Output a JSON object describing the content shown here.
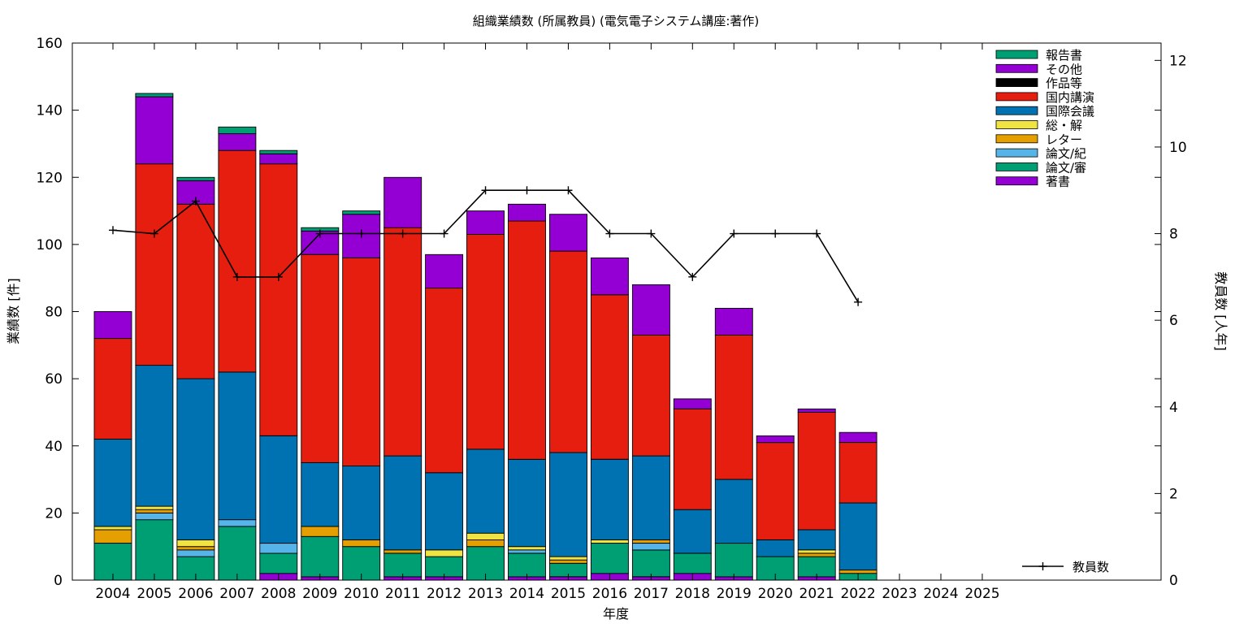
{
  "chart_data": {
    "type": "bar",
    "stacked": true,
    "title": "組織業績数 (所属教員) (電気電子システム講座:著作)",
    "xlabel": "年度",
    "ylabel": "業績数 [件]",
    "y2label": "教員数 [人年]",
    "ylim": [
      0,
      160
    ],
    "y2lim": [
      0,
      12.4
    ],
    "yticks": [
      0,
      20,
      40,
      60,
      80,
      100,
      120,
      140,
      160
    ],
    "y2ticks": [
      0,
      2,
      4,
      6,
      8,
      10,
      12
    ],
    "grid": false,
    "legend_position": "top-right",
    "categories": [
      "2004",
      "2005",
      "2006",
      "2007",
      "2008",
      "2009",
      "2010",
      "2011",
      "2012",
      "2013",
      "2014",
      "2015",
      "2016",
      "2017",
      "2018",
      "2019",
      "2020",
      "2021",
      "2022",
      "2023",
      "2024",
      "2025"
    ],
    "series": [
      {
        "name": "著書",
        "color": "#9400d3",
        "values": [
          0,
          0,
          0,
          0,
          2,
          1,
          0,
          1,
          1,
          0,
          1,
          1,
          2,
          1,
          2,
          1,
          0,
          1,
          0,
          0,
          0,
          0
        ]
      },
      {
        "name": "論文/審",
        "color": "#009e73",
        "values": [
          11,
          18,
          7,
          16,
          6,
          12,
          10,
          7,
          6,
          10,
          7,
          4,
          9,
          8,
          6,
          10,
          7,
          6,
          2,
          0,
          0,
          0
        ]
      },
      {
        "name": "論文/紀",
        "color": "#56b4e9",
        "values": [
          0,
          2,
          2,
          2,
          3,
          0,
          0,
          0,
          0,
          0,
          1,
          0,
          0,
          2,
          0,
          0,
          0,
          0,
          0,
          0,
          0,
          0
        ]
      },
      {
        "name": "レター",
        "color": "#e69f00",
        "values": [
          4,
          1,
          1,
          0,
          0,
          3,
          2,
          1,
          0,
          2,
          0,
          1,
          0,
          1,
          0,
          0,
          0,
          1,
          1,
          0,
          0,
          0
        ]
      },
      {
        "name": "総・解",
        "color": "#f0e442",
        "values": [
          1,
          1,
          2,
          0,
          0,
          0,
          0,
          0,
          2,
          2,
          1,
          1,
          1,
          0,
          0,
          0,
          0,
          1,
          0,
          0,
          0,
          0
        ]
      },
      {
        "name": "国際会議",
        "color": "#0072b2",
        "values": [
          26,
          42,
          48,
          44,
          32,
          19,
          22,
          28,
          23,
          25,
          26,
          31,
          24,
          25,
          13,
          19,
          5,
          6,
          20,
          0,
          0,
          0
        ]
      },
      {
        "name": "国内講演",
        "color": "#e51e10",
        "values": [
          30,
          60,
          52,
          66,
          81,
          62,
          62,
          68,
          55,
          64,
          71,
          60,
          49,
          36,
          30,
          43,
          29,
          35,
          18,
          0,
          0,
          0
        ]
      },
      {
        "name": "作品等",
        "color": "#000000",
        "values": [
          0,
          0,
          0,
          0,
          0,
          0,
          0,
          0,
          0,
          0,
          0,
          0,
          0,
          0,
          0,
          0,
          0,
          0,
          0,
          0,
          0,
          0
        ]
      },
      {
        "name": "その他",
        "color": "#9400d3",
        "values": [
          8,
          20,
          7,
          5,
          3,
          7,
          13,
          15,
          10,
          7,
          5,
          11,
          11,
          15,
          3,
          8,
          2,
          1,
          3,
          0,
          0,
          0
        ]
      },
      {
        "name": "報告書",
        "color": "#009e73",
        "values": [
          0,
          1,
          1,
          2,
          1,
          1,
          1,
          0,
          0,
          0,
          0,
          0,
          0,
          0,
          0,
          0,
          0,
          0,
          0,
          0,
          0,
          0
        ]
      }
    ],
    "line_series": {
      "name": "教員数",
      "axis": "y2",
      "color": "#000000",
      "values": [
        8.08,
        8.0,
        8.75,
        7.0,
        7.0,
        8.0,
        8.0,
        8.0,
        8.0,
        9.0,
        9.0,
        9.0,
        8.0,
        8.0,
        7.0,
        8.0,
        8.0,
        8.0,
        6.42
      ]
    }
  }
}
